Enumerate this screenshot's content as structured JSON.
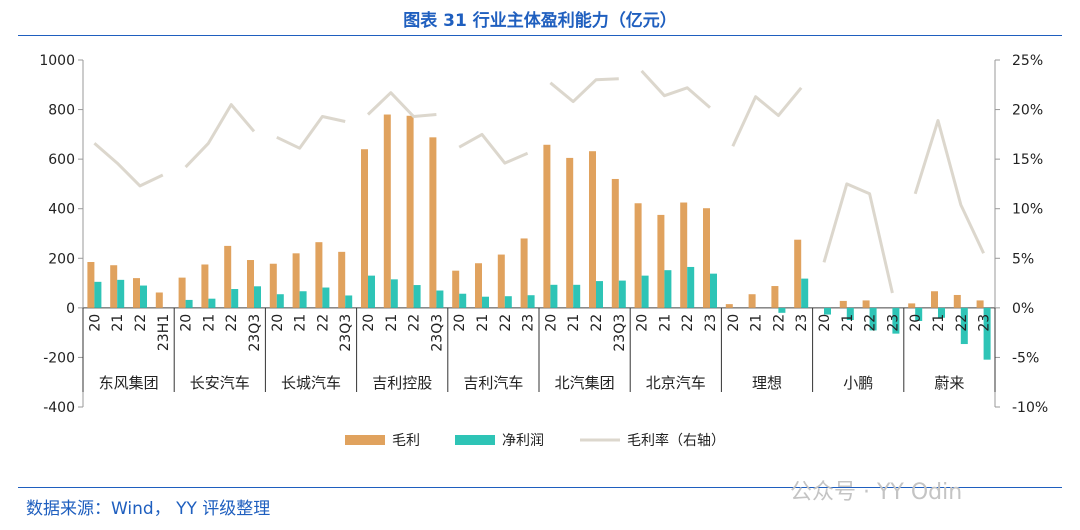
{
  "title": "图表 31 行业主体盈利能力（亿元）",
  "source": "数据来源：Wind， YY 评级整理",
  "watermark": "公众号 · YY Odin",
  "chart_data": {
    "type": "bar",
    "title": "图表 31 行业主体盈利能力（亿元）",
    "y_left": {
      "ylim": [
        -400,
        1000
      ],
      "ticks": [
        -400,
        -200,
        0,
        200,
        400,
        600,
        800,
        1000
      ]
    },
    "y_right": {
      "ylim": [
        -10,
        25
      ],
      "ticks": [
        -10,
        -5,
        0,
        5,
        10,
        15,
        20,
        25
      ],
      "unit": "%"
    },
    "colors": {
      "gross": "#e0a25e",
      "net": "#2ec4b6",
      "margin": "#dcd7cd"
    },
    "legend": [
      {
        "key": "gross",
        "label": "毛利"
      },
      {
        "key": "net",
        "label": "净利润"
      },
      {
        "key": "margin",
        "label": "毛利率（右轴）"
      }
    ],
    "groups": [
      {
        "name": "东风集团",
        "periods": [
          "20",
          "21",
          "22",
          "23H1"
        ],
        "gross": [
          185,
          172,
          120,
          62
        ],
        "net": [
          105,
          113,
          90,
          0
        ],
        "margin": [
          16.6,
          14.6,
          12.3,
          13.4
        ]
      },
      {
        "name": "长安汽车",
        "periods": [
          "20",
          "21",
          "22",
          "23Q3"
        ],
        "gross": [
          122,
          175,
          250,
          193
        ],
        "net": [
          32,
          37,
          76,
          87
        ],
        "margin": [
          14.2,
          16.6,
          20.5,
          17.8
        ]
      },
      {
        "name": "长城汽车",
        "periods": [
          "20",
          "21",
          "22",
          "23Q3"
        ],
        "gross": [
          178,
          220,
          265,
          226
        ],
        "net": [
          55,
          67,
          82,
          50
        ],
        "margin": [
          17.2,
          16.1,
          19.3,
          18.8
        ]
      },
      {
        "name": "吉利控股",
        "periods": [
          "20",
          "21",
          "22",
          "23Q3"
        ],
        "gross": [
          640,
          780,
          775,
          688
        ],
        "net": [
          130,
          115,
          92,
          70
        ],
        "margin": [
          19.5,
          21.7,
          19.3,
          19.5
        ]
      },
      {
        "name": "吉利汽车",
        "periods": [
          "20",
          "21",
          "22",
          "23"
        ],
        "gross": [
          150,
          180,
          215,
          280
        ],
        "net": [
          57,
          45,
          47,
          51
        ],
        "margin": [
          16.2,
          17.5,
          14.6,
          15.6
        ]
      },
      {
        "name": "北汽集团",
        "periods": [
          "20",
          "21",
          "22",
          "23Q3"
        ],
        "gross": [
          658,
          605,
          632,
          520
        ],
        "net": [
          93,
          93,
          108,
          110
        ],
        "margin": [
          22.7,
          20.8,
          23.0,
          23.1
        ]
      },
      {
        "name": "北京汽车",
        "periods": [
          "20",
          "21",
          "22",
          "23"
        ],
        "gross": [
          422,
          375,
          425,
          402
        ],
        "net": [
          130,
          152,
          165,
          138
        ],
        "margin": [
          23.9,
          21.4,
          22.2,
          20.2
        ]
      },
      {
        "name": "理想",
        "periods": [
          "20",
          "21",
          "22",
          "23"
        ],
        "gross": [
          15,
          55,
          88,
          275
        ],
        "net": [
          0,
          0,
          -20,
          118
        ],
        "margin": [
          16.3,
          21.3,
          19.4,
          22.2
        ]
      },
      {
        "name": "小鹏",
        "periods": [
          "20",
          "21",
          "22",
          "23"
        ],
        "gross": [
          0,
          28,
          30,
          0
        ],
        "net": [
          -27,
          -49,
          -91,
          -104
        ],
        "margin": [
          4.6,
          12.5,
          11.5,
          1.5
        ]
      },
      {
        "name": "蔚来",
        "periods": [
          "20",
          "21",
          "22",
          "23"
        ],
        "gross": [
          18,
          67,
          52,
          30
        ],
        "net": [
          -53,
          -40,
          -146,
          -209
        ],
        "margin": [
          11.5,
          18.9,
          10.4,
          5.5
        ]
      }
    ]
  }
}
